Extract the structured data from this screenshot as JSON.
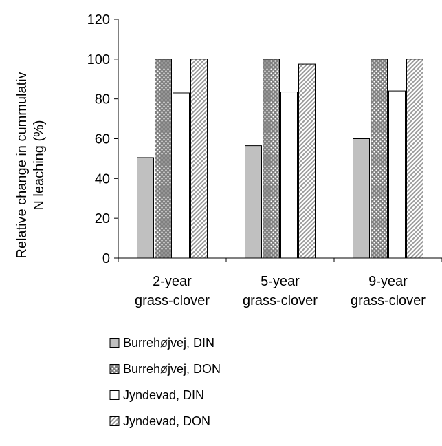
{
  "chart_data": {
    "type": "bar",
    "title": "",
    "xlabel": "",
    "ylabel_lines": [
      "Relative change in cummulativ",
      "N leaching (%)"
    ],
    "ylim": [
      0,
      120
    ],
    "yticks": [
      0,
      20,
      40,
      60,
      80,
      100,
      120
    ],
    "categories": [
      {
        "line1": "2-year",
        "line2": "grass-clover"
      },
      {
        "line1": "5-year",
        "line2": "grass-clover"
      },
      {
        "line1": "9-year",
        "line2": "grass-clover"
      }
    ],
    "series": [
      {
        "name": "Burrehøjvej, DIN",
        "pattern": "solid-gray",
        "values": [
          50.5,
          56.5,
          60
        ]
      },
      {
        "name": "Burrehøjvej, DON",
        "pattern": "dots",
        "values": [
          100,
          100,
          100
        ]
      },
      {
        "name": "Jyndevad, DIN",
        "pattern": "white",
        "values": [
          83,
          83.5,
          84
        ]
      },
      {
        "name": "Jyndevad, DON",
        "pattern": "diagonal",
        "values": [
          100,
          97.5,
          100
        ]
      }
    ],
    "grid": false,
    "legend_position": "bottom-left"
  },
  "colors": {
    "solid_gray": "#c0c0c0",
    "dots_bg": "#808080",
    "dots_fg": "#ffffff",
    "white": "#ffffff",
    "diagonal_bg": "#ffffff",
    "diagonal_fg": "#9a9a9a",
    "outline": "#000000"
  }
}
